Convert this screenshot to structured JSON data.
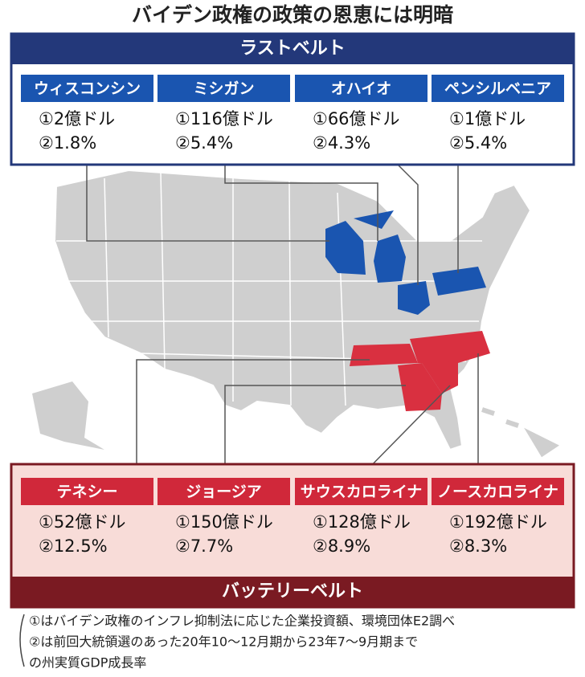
{
  "header": {
    "title": "バイデン政権の政策の恩恵には明暗"
  },
  "rust_belt": {
    "label": "ラストベルト",
    "states": [
      {
        "name": "ウィスコンシン",
        "investment": "①2億ドル",
        "growth": "②1.8%"
      },
      {
        "name": "ミシガン",
        "investment": "①116億ドル",
        "growth": "②5.4%"
      },
      {
        "name": "オハイオ",
        "investment": "①66億ドル",
        "growth": "②4.3%"
      },
      {
        "name": "ペンシルベニア",
        "investment": "①1億ドル",
        "growth": "②5.4%"
      }
    ]
  },
  "battery_belt": {
    "label": "バッテリーベルト",
    "states": [
      {
        "name": "テネシー",
        "investment": "①52億ドル",
        "growth": "②12.5%"
      },
      {
        "name": "ジョージア",
        "investment": "①150億ドル",
        "growth": "②7.7%"
      },
      {
        "name": "サウスカロライナ",
        "investment": "①128億ドル",
        "growth": "②8.9%"
      },
      {
        "name": "ノースカロライナ",
        "investment": "①192億ドル",
        "growth": "②8.3%"
      }
    ]
  },
  "notes": [
    "①はバイデン政権のインフレ抑制法に応じた企業投資額、環境団体E2調べ",
    "②は前回大統領選のあった20年10～12月期から23年7～9月期まで",
    "の州実質GDP成長率"
  ]
}
